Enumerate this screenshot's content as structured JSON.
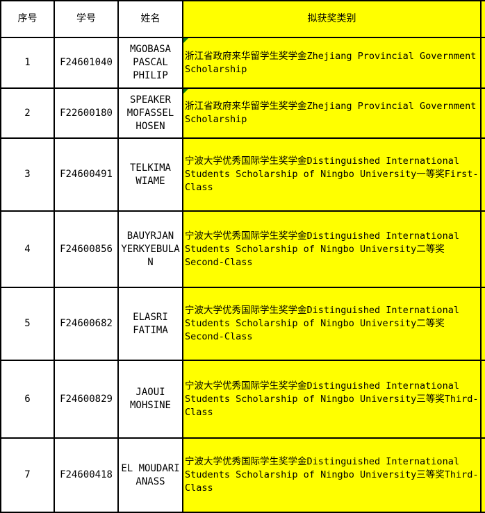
{
  "table": {
    "columns": [
      {
        "label": "序号"
      },
      {
        "label": "学号"
      },
      {
        "label": "姓名"
      },
      {
        "label": "拟获奖类别"
      }
    ],
    "rows": [
      {
        "index": "1",
        "student_id": "F24601040",
        "name": "MGOBASA PASCAL PHILIP",
        "award": "浙江省政府来华留学生奖学金Zhejiang Provincial Government Scholarship",
        "has_flag": true
      },
      {
        "index": "2",
        "student_id": "F22600180",
        "name": "SPEAKER MOFASSEL HOSEN",
        "award": "浙江省政府来华留学生奖学金Zhejiang Provincial Government Scholarship",
        "has_flag": true
      },
      {
        "index": "3",
        "student_id": "F24600491",
        "name": "TELKIMA WIAME",
        "award": "宁波大学优秀国际学生奖学金Distinguished International Students Scholarship of Ningbo University一等奖First-Class",
        "has_flag": false
      },
      {
        "index": "4",
        "student_id": "F24600856",
        "name": "BAUYRJAN YERKYEBULAN",
        "award": "宁波大学优秀国际学生奖学金Distinguished International Students Scholarship of Ningbo University二等奖Second-Class",
        "has_flag": false
      },
      {
        "index": "5",
        "student_id": "F24600682",
        "name": "ELASRI FATIMA",
        "award": "宁波大学优秀国际学生奖学金Distinguished International Students Scholarship of Ningbo University二等奖Second-Class",
        "has_flag": false
      },
      {
        "index": "6",
        "student_id": "F24600829",
        "name": "JAOUI MOHSINE",
        "award": "宁波大学优秀国际学生奖学金Distinguished International Students Scholarship of Ningbo University三等奖Third-Class",
        "has_flag": false
      },
      {
        "index": "7",
        "student_id": "F24600418",
        "name": "EL MOUDARI ANASS",
        "award": "宁波大学优秀国际学生奖学金Distinguished International Students Scholarship of Ningbo University三等奖Third-Class",
        "has_flag": false
      }
    ]
  },
  "colors": {
    "highlight": "#FFFF00",
    "grid_border": "#000000",
    "flag_indicator_green": "#108010"
  }
}
